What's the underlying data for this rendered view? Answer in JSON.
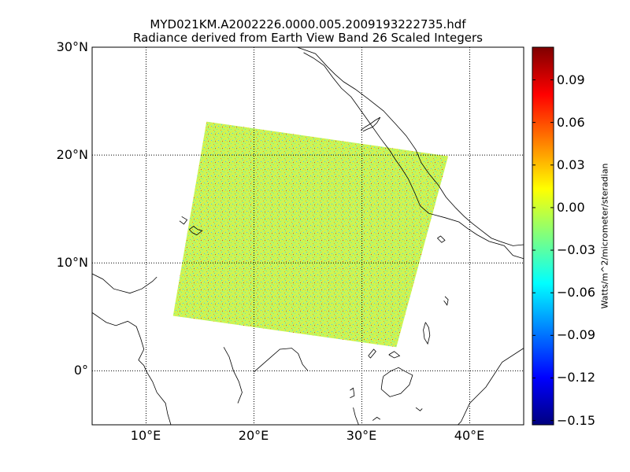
{
  "figure": {
    "title_line1": "MYD021KM.A2002226.0000.005.2009193222735.hdf",
    "title_line2": "Radiance derived from Earth View Band 26 Scaled Integers"
  },
  "map": {
    "projection": "cylindrical",
    "lon_range": [
      5,
      45
    ],
    "lat_range": [
      -5,
      30
    ],
    "parallels": [
      0,
      10,
      20,
      30
    ],
    "meridians": [
      10,
      20,
      30,
      40
    ],
    "lat_labels": [
      "30°N",
      "20°N",
      "10°N",
      "0°"
    ],
    "lon_labels": [
      "10°E",
      "20°E",
      "30°E",
      "40°E"
    ],
    "gridline_style": "dotted",
    "coastline_color": "#000000",
    "swath": {
      "corners_lonlat": [
        [
          15.6,
          23.1
        ],
        [
          38.0,
          19.9
        ],
        [
          33.2,
          2.2
        ],
        [
          12.5,
          5.1
        ]
      ],
      "dominant_color": "#c8f55a"
    }
  },
  "colorbar": {
    "label": "Watts/m^2/micrometer/steradian",
    "range": [
      -0.153,
      0.113
    ],
    "ticks": [
      0.09,
      0.06,
      0.03,
      0.0,
      -0.03,
      -0.06,
      -0.09,
      -0.12,
      -0.15
    ],
    "tick_labels": [
      "0.09",
      "0.06",
      "0.03",
      "0.00",
      "−0.03",
      "−0.06",
      "−0.09",
      "−0.12",
      "−0.15"
    ],
    "colormap": "jet",
    "colors": [
      "#00007f",
      "#0000ff",
      "#007fff",
      "#00ffff",
      "#7fff7f",
      "#ffff00",
      "#ff7f00",
      "#ff0000",
      "#7f0000"
    ]
  }
}
